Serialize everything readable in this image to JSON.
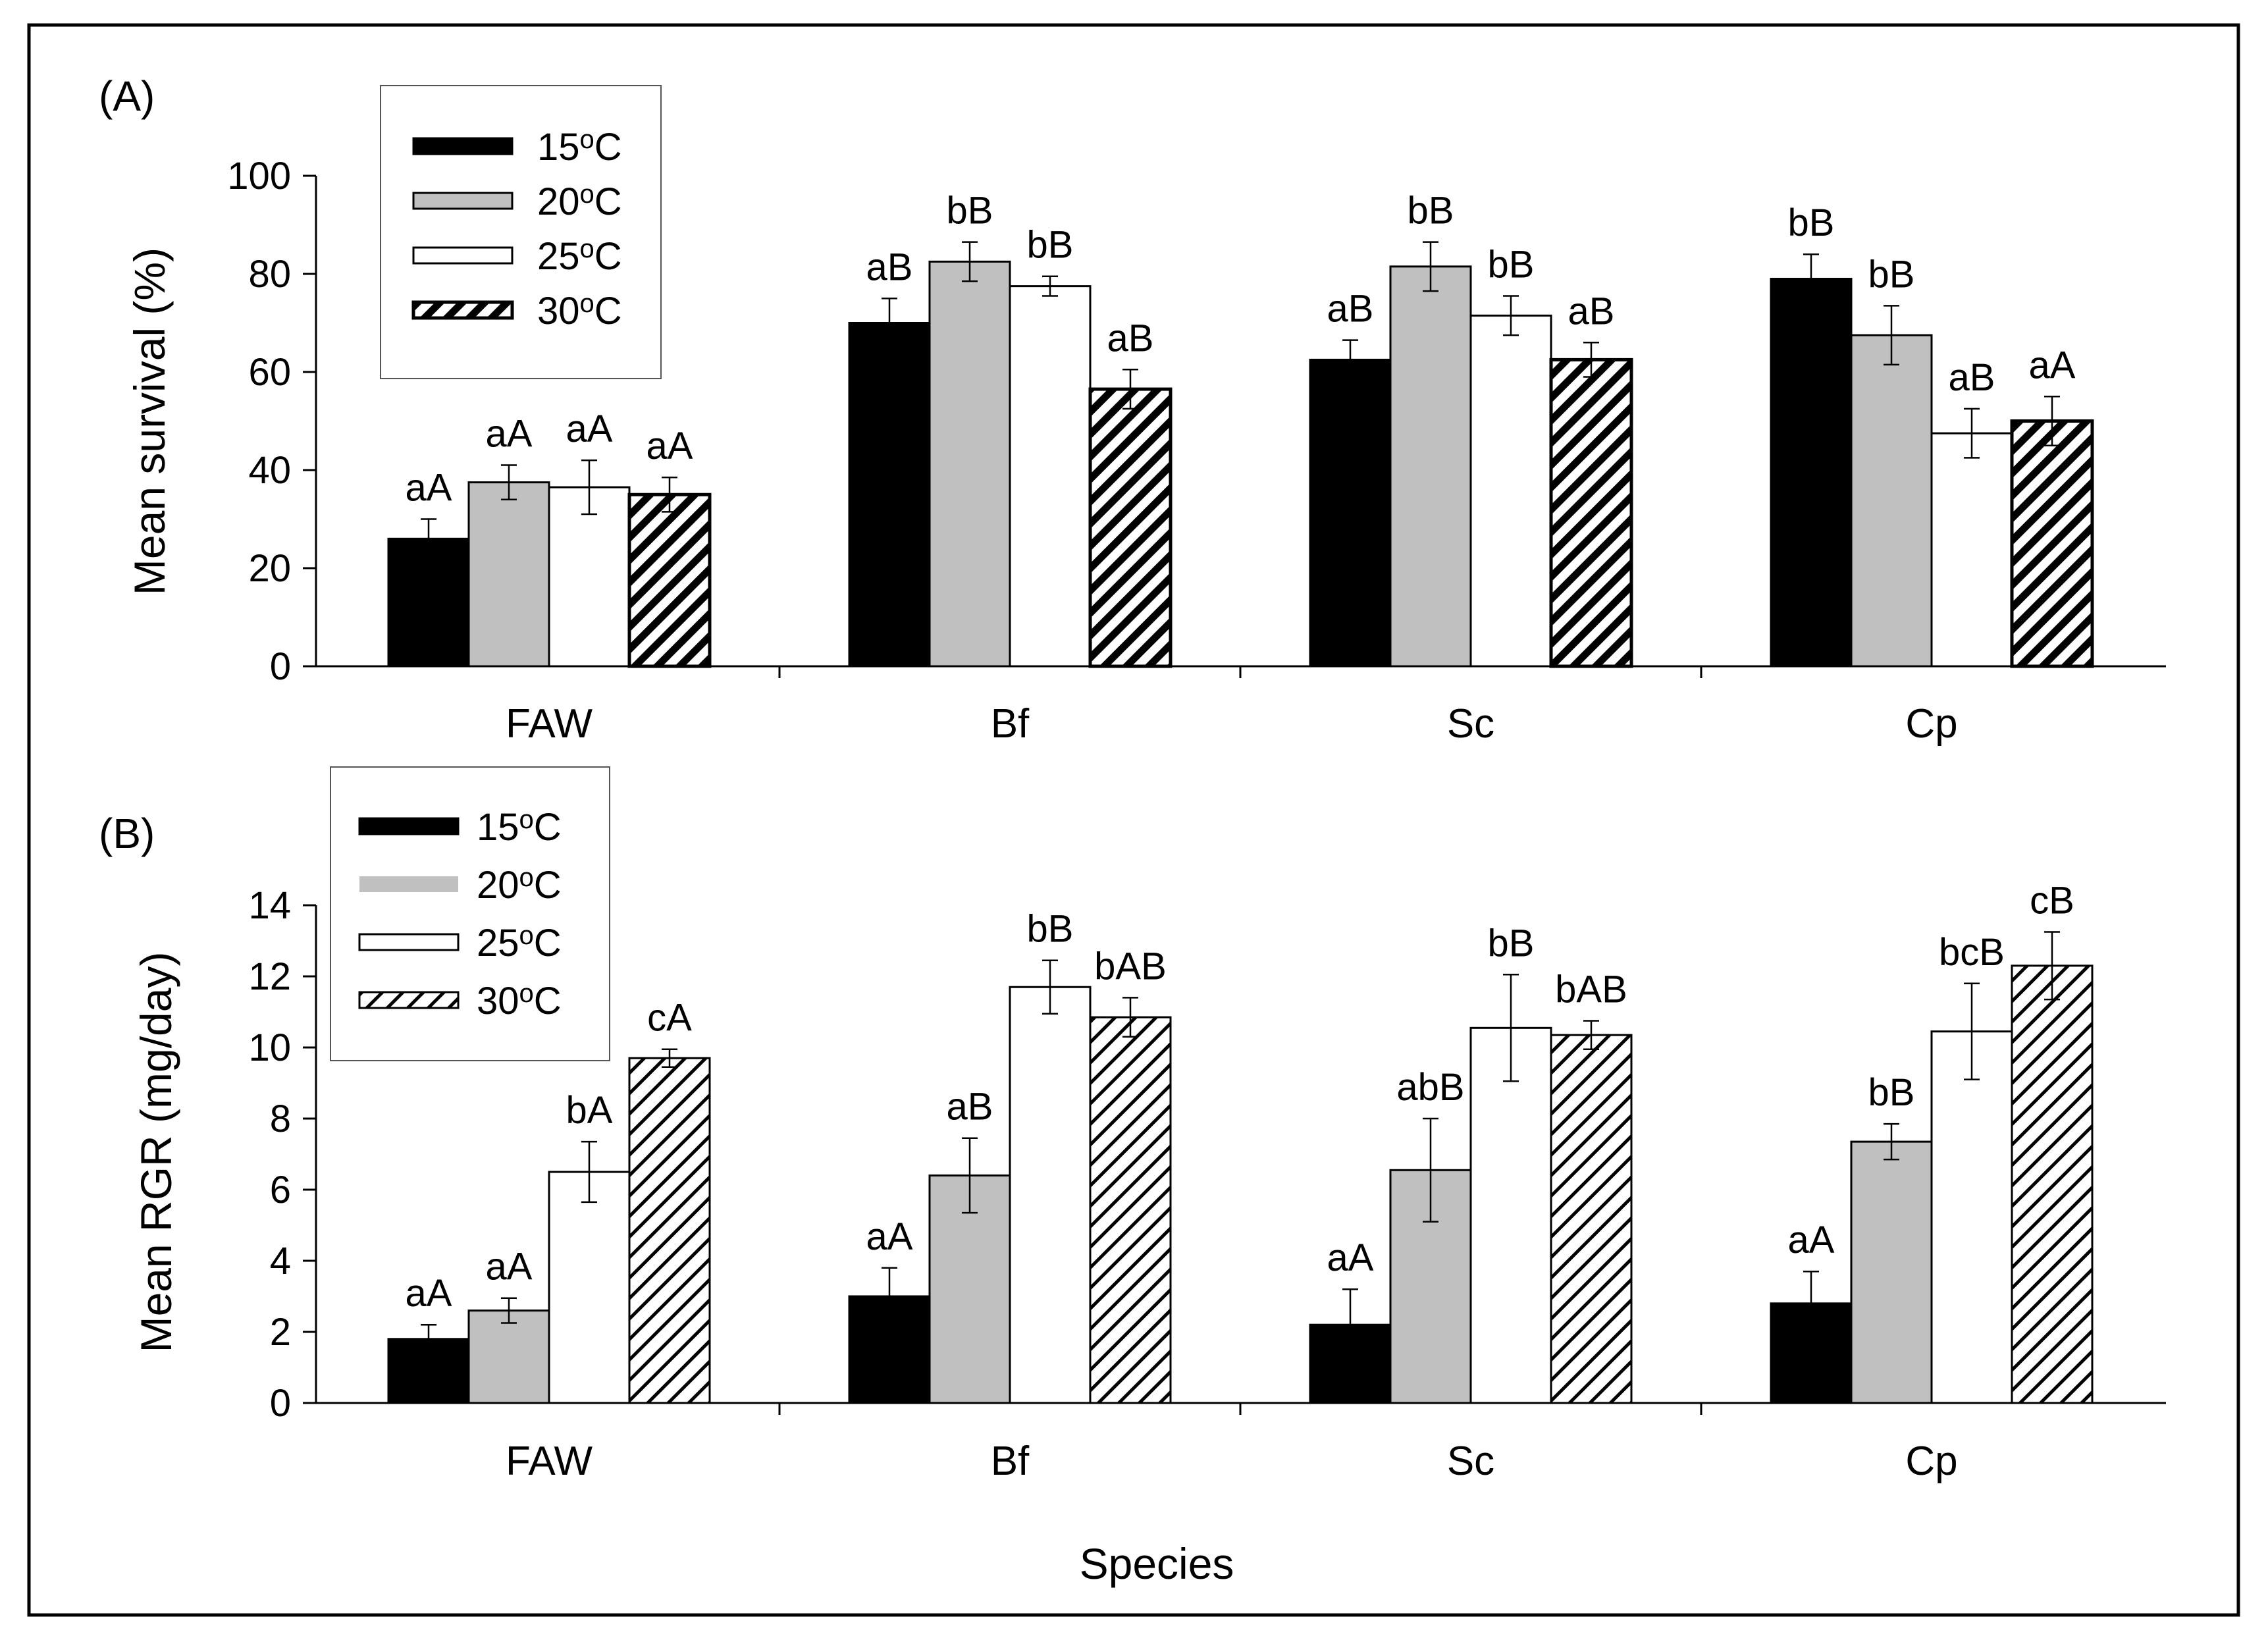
{
  "figure": {
    "xlabel": "Species",
    "patterns": {
      "black": "#000000",
      "gray": "#c0c0c0",
      "white": "#ffffff",
      "hatch": "#000000"
    }
  },
  "chart_data": [
    {
      "type": "bar",
      "panel": "(A)",
      "ylabel": "Mean survival (%)",
      "ylim": [
        0,
        100
      ],
      "yticks": [
        0,
        20,
        40,
        60,
        80,
        100
      ],
      "categories": [
        "FAW",
        "Bf",
        "Sc",
        "Cp"
      ],
      "legend_position": "top-left",
      "legend_style": "outlined",
      "series": [
        {
          "name": "15oC",
          "base": "15",
          "sup": "o",
          "unit": "C",
          "fill": "black",
          "values": [
            26,
            70,
            62.5,
            79
          ],
          "errors": [
            4,
            5,
            4,
            5
          ],
          "labels": [
            "aA",
            "aB",
            "aB",
            "bB"
          ]
        },
        {
          "name": "20oC",
          "base": "20",
          "sup": "o",
          "unit": "C",
          "fill": "gray",
          "values": [
            37.5,
            82.5,
            81.5,
            67.5
          ],
          "errors": [
            3.5,
            4,
            5,
            6
          ],
          "labels": [
            "aA",
            "bB",
            "bB",
            "bB"
          ]
        },
        {
          "name": "25oC",
          "base": "25",
          "sup": "o",
          "unit": "C",
          "fill": "white",
          "values": [
            36.5,
            77.5,
            71.5,
            47.5
          ],
          "errors": [
            5.5,
            2,
            4,
            5
          ],
          "labels": [
            "aA",
            "bB",
            "bB",
            "aB"
          ]
        },
        {
          "name": "30oC",
          "base": "30",
          "sup": "o",
          "unit": "C",
          "fill": "hatch",
          "values": [
            35,
            56.5,
            62.5,
            50
          ],
          "errors": [
            3.5,
            4,
            3.5,
            5
          ],
          "labels": [
            "aA",
            "aB",
            "aB",
            "aA"
          ]
        }
      ]
    },
    {
      "type": "bar",
      "panel": "(B)",
      "ylabel": "Mean RGR (mg/day)",
      "ylim": [
        0,
        14
      ],
      "yticks": [
        0,
        2,
        4,
        6,
        8,
        10,
        12,
        14
      ],
      "categories": [
        "FAW",
        "Bf",
        "Sc",
        "Cp"
      ],
      "legend_position": "top-left",
      "legend_style": "plain",
      "series": [
        {
          "name": "15oC",
          "base": "15",
          "sup": "o",
          "unit": "C",
          "fill": "black",
          "values": [
            1.8,
            3.0,
            2.2,
            2.8
          ],
          "errors": [
            0.4,
            0.8,
            1.0,
            0.9
          ],
          "labels": [
            "aA",
            "aA",
            "aA",
            "aA"
          ]
        },
        {
          "name": "20oC",
          "base": "20",
          "sup": "o",
          "unit": "C",
          "fill": "gray",
          "values": [
            2.6,
            6.4,
            6.55,
            7.35
          ],
          "errors": [
            0.35,
            1.05,
            1.45,
            0.5
          ],
          "labels": [
            "aA",
            "aB",
            "abB",
            "bB"
          ]
        },
        {
          "name": "25oC",
          "base": "25",
          "sup": "o",
          "unit": "C",
          "fill": "white",
          "values": [
            6.5,
            11.7,
            10.55,
            10.45
          ],
          "errors": [
            0.85,
            0.75,
            1.5,
            1.35
          ],
          "labels": [
            "bA",
            "bB",
            "bB",
            "bcB"
          ]
        },
        {
          "name": "30oC",
          "base": "30",
          "sup": "o",
          "unit": "C",
          "fill": "hatch",
          "values": [
            9.7,
            10.85,
            10.35,
            12.3
          ],
          "errors": [
            0.25,
            0.55,
            0.4,
            0.95
          ],
          "labels": [
            "cA",
            "bAB",
            "bAB",
            "cB"
          ]
        }
      ]
    }
  ]
}
